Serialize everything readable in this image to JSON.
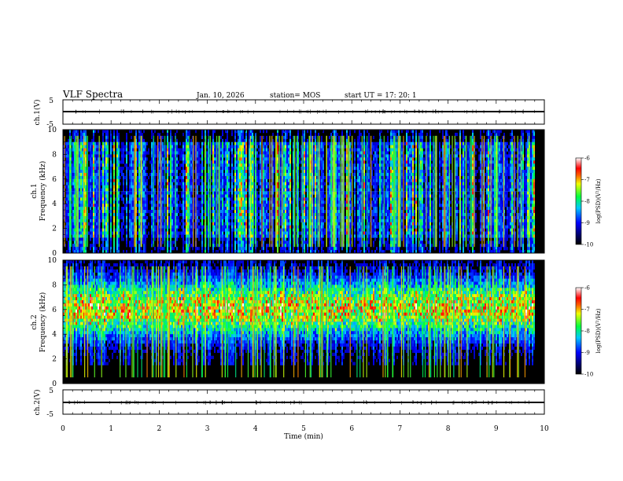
{
  "header": {
    "title": "VLF Spectra",
    "date": "Jan. 10, 2026",
    "station": "station= MOS",
    "start_ut": "start UT =  17: 20: 1"
  },
  "chart_data": [
    {
      "type": "line",
      "name": "ch1-voltage",
      "ylabel": "ch.1(V)",
      "ylim": [
        -5,
        5
      ],
      "yticks": [
        "5",
        "-5"
      ],
      "trace_value": 0
    },
    {
      "type": "heatmap",
      "name": "ch1-spectrogram",
      "ylabel_top": "ch.1",
      "ylabel": "Frequency (kHz)",
      "ylim": [
        0,
        10
      ],
      "yticks": [
        "0",
        "2",
        "4",
        "6",
        "8",
        "10"
      ],
      "xlim": [
        0,
        10
      ],
      "colorbar": {
        "label": "log(PSD)(V²/Hz)",
        "range": [
          -10,
          -6
        ],
        "ticks": [
          "-6",
          "-7",
          "-8",
          "-9",
          "-10"
        ]
      }
    },
    {
      "type": "heatmap",
      "name": "ch2-spectrogram",
      "ylabel_top": "ch.2",
      "ylabel": "Frequency (kHz)",
      "ylim": [
        0,
        10
      ],
      "yticks": [
        "0",
        "2",
        "4",
        "6",
        "8",
        "10"
      ],
      "xlim": [
        0,
        10
      ],
      "colorbar": {
        "label": "log(PSD)(V²/Hz)",
        "range": [
          -10,
          -6
        ],
        "ticks": [
          "-6",
          "-7",
          "-8",
          "-9",
          "-10"
        ]
      }
    },
    {
      "type": "line",
      "name": "ch2-voltage",
      "ylabel": "ch.2(V)",
      "ylim": [
        -5,
        5
      ],
      "yticks": [
        "5",
        "-5"
      ],
      "trace_value": 0
    }
  ],
  "xaxis": {
    "label": "Time (min)",
    "range": [
      0,
      10
    ],
    "ticks": [
      "0",
      "1",
      "2",
      "3",
      "4",
      "5",
      "6",
      "7",
      "8",
      "9",
      "10"
    ],
    "data_end": 9.8
  }
}
